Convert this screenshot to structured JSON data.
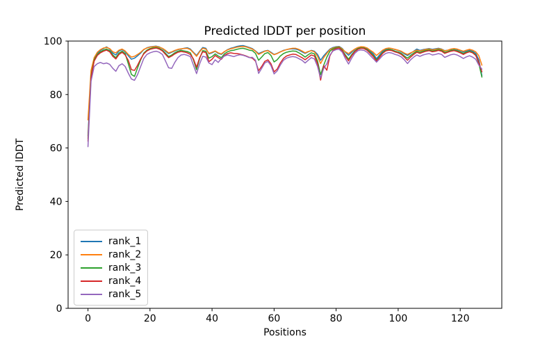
{
  "chart_data": {
    "type": "line",
    "title": "Predicted lDDT per position",
    "xlabel": "Positions",
    "ylabel": "Predicted lDDT",
    "xlim": [
      -6.4,
      133.4
    ],
    "ylim": [
      0,
      100
    ],
    "xticks": [
      0,
      20,
      40,
      60,
      80,
      100,
      120
    ],
    "yticks": [
      0,
      20,
      40,
      60,
      80,
      100
    ],
    "grid": false,
    "legend_position": "lower left",
    "x_start": 0,
    "x_step": 1,
    "n_points": 128,
    "series": [
      {
        "name": "rank_1",
        "color": "#1f77b4",
        "values": [
          64.5,
          88,
          93.5,
          95.5,
          96.5,
          97.2,
          97.8,
          97,
          95.5,
          94.8,
          96.3,
          96.8,
          96,
          94.5,
          93.2,
          93.6,
          94.5,
          95.5,
          96.8,
          97.5,
          97.8,
          98,
          98.1,
          97.8,
          97.2,
          96.2,
          95.3,
          95.8,
          96.3,
          96.8,
          97,
          97.3,
          97.5,
          97,
          95.8,
          94.6,
          96.2,
          97.6,
          97.3,
          95.2,
          95.6,
          96.2,
          95.4,
          95,
          96,
          96.8,
          97.3,
          97.6,
          98,
          98.2,
          98.3,
          98,
          97.6,
          97.2,
          96.3,
          95.3,
          95.8,
          96.3,
          96.5,
          95.8,
          95,
          95.4,
          96,
          96.5,
          96.8,
          97,
          97.1,
          97,
          96.6,
          96,
          95.4,
          96,
          96.5,
          96.2,
          95,
          92.8,
          94.5,
          95.8,
          97,
          97.6,
          97.9,
          98,
          97.2,
          95.8,
          94.7,
          95.8,
          96.9,
          97.5,
          97.8,
          97.7,
          97.2,
          96.3,
          95.2,
          93.4,
          94.8,
          96.2,
          97,
          97.3,
          97.2,
          96.8,
          96.5,
          96,
          95.2,
          94.6,
          95.4,
          96.2,
          97,
          96.5,
          96.8,
          97,
          97.2,
          96.9,
          97.1,
          97.3,
          97,
          96.4,
          96.6,
          96.9,
          97.1,
          96.8,
          96.4,
          95.9,
          96.3,
          96.6,
          96.2,
          95.4,
          93,
          87
        ]
      },
      {
        "name": "rank_2",
        "color": "#ff7f0e",
        "values": [
          70.5,
          89,
          93.8,
          95.8,
          96.8,
          97.4,
          97.6,
          97.2,
          96,
          95.6,
          96.6,
          97,
          96.3,
          95,
          94,
          94.3,
          95,
          95.8,
          96.9,
          97.4,
          97.7,
          97.9,
          98,
          97.7,
          97.3,
          96.5,
          95.6,
          96,
          96.5,
          96.9,
          97.1,
          97.2,
          97.3,
          96.8,
          95.6,
          94.3,
          96,
          97.3,
          97,
          95.4,
          95.8,
          96.3,
          95.6,
          95.2,
          96.1,
          96.7,
          97.1,
          97.4,
          97.7,
          97.9,
          98,
          97.8,
          97.4,
          97,
          96.2,
          95,
          95.6,
          96.2,
          96.4,
          95.6,
          94.9,
          95.3,
          95.9,
          96.4,
          96.8,
          97.1,
          97.3,
          97.3,
          96.9,
          96.3,
          95.6,
          96.1,
          96.4,
          96,
          94.3,
          91.6,
          93.8,
          95.4,
          96.8,
          97.4,
          97.7,
          97.8,
          97,
          96,
          95.3,
          96.2,
          97,
          97.6,
          97.9,
          97.8,
          97.4,
          96.6,
          95.8,
          94.6,
          95.6,
          96.6,
          97.2,
          97.4,
          97.2,
          96.9,
          96.6,
          96.2,
          95.5,
          95,
          95.6,
          96.1,
          96.6,
          96.3,
          96.6,
          96.9,
          97,
          96.7,
          96.9,
          97.1,
          96.9,
          96.3,
          96.6,
          97,
          97.2,
          97,
          96.6,
          96.2,
          96.6,
          96.9,
          96.6,
          96,
          94.5,
          91
        ]
      },
      {
        "name": "rank_3",
        "color": "#2ca02c",
        "values": [
          63.5,
          87,
          93,
          95,
          96,
          96.6,
          97,
          96.4,
          94.8,
          93.8,
          95.5,
          96.2,
          95.3,
          91.5,
          87.5,
          86.8,
          90,
          93,
          95.5,
          96.6,
          97.2,
          97.5,
          97.6,
          97.3,
          96.6,
          95.4,
          94.2,
          94.8,
          95.6,
          96.2,
          96.5,
          96.3,
          96.1,
          95.6,
          93,
          89.3,
          93.5,
          96.4,
          96.2,
          93.6,
          94.2,
          95.2,
          94.4,
          93.8,
          95.2,
          96,
          96.4,
          96.6,
          96.9,
          97.2,
          97.3,
          97,
          96.6,
          96.4,
          95.4,
          92.8,
          94,
          95.3,
          95.7,
          94.6,
          92.2,
          93,
          94.4,
          95.3,
          95.8,
          96.1,
          96.3,
          96.2,
          95.6,
          94.9,
          94,
          94.9,
          95.6,
          95.2,
          92.5,
          87.4,
          91,
          94,
          96.2,
          97.1,
          97.5,
          97.6,
          96.6,
          94.8,
          93.2,
          94.9,
          96.3,
          97.2,
          97.5,
          97.4,
          96.8,
          95.8,
          94.6,
          92.9,
          94.2,
          95.7,
          96.6,
          96.9,
          96.7,
          96.2,
          95.9,
          95.4,
          94.4,
          93.6,
          94.6,
          95.5,
          96.2,
          95.8,
          96.2,
          96.5,
          96.7,
          96.3,
          96.5,
          96.8,
          96.5,
          95.8,
          96.1,
          96.5,
          96.7,
          96.4,
          95.9,
          95.4,
          95.9,
          96.2,
          95.8,
          94.8,
          91.5,
          86.5
        ]
      },
      {
        "name": "rank_4",
        "color": "#d62728",
        "values": [
          62.5,
          86.5,
          92.5,
          94.6,
          95.6,
          96.2,
          96.6,
          96,
          94.3,
          93.3,
          95,
          95.8,
          94.8,
          92.8,
          89.3,
          89,
          91,
          93.3,
          95.2,
          96.3,
          96.9,
          97.2,
          97.4,
          97,
          96.3,
          95,
          93.8,
          94.4,
          95.2,
          95.8,
          96.1,
          95.9,
          95.6,
          95,
          93.3,
          90.2,
          93.8,
          96,
          95.7,
          92.3,
          93.2,
          94.6,
          93.8,
          93.2,
          94.6,
          95.3,
          95.6,
          95.4,
          95.3,
          95.1,
          94.8,
          94.4,
          93.9,
          93.6,
          92.5,
          88.9,
          90.5,
          92.4,
          93,
          91.5,
          88.5,
          89.5,
          91.8,
          93.5,
          94.4,
          94.8,
          95.1,
          95,
          94.4,
          93.8,
          93,
          93.9,
          94.8,
          94.4,
          91.5,
          85.4,
          90.8,
          89.1,
          94.5,
          96.6,
          97.2,
          97.4,
          96.3,
          94.3,
          92.6,
          94.5,
          96,
          96.9,
          97.3,
          97.2,
          96.5,
          95.4,
          94.2,
          92.5,
          93.9,
          95.4,
          96.3,
          96.6,
          96.4,
          95.9,
          95.6,
          95,
          94,
          92.8,
          94,
          95,
          95.8,
          95.4,
          95.8,
          96.2,
          96.4,
          96,
          96.2,
          96.5,
          96.2,
          95.4,
          95.8,
          96.2,
          96.4,
          96.1,
          95.6,
          95,
          95.6,
          96,
          95.6,
          94.6,
          92,
          88.5
        ]
      },
      {
        "name": "rank_5",
        "color": "#9467bd",
        "values": [
          60.5,
          85,
          90.5,
          91.5,
          92,
          91.5,
          91.8,
          91.3,
          89.8,
          88.7,
          90.8,
          91.5,
          90.5,
          88,
          85.8,
          85.3,
          87.5,
          90.5,
          93.5,
          95,
          95.6,
          96,
          96.2,
          95.8,
          95,
          92.5,
          90,
          89.8,
          92,
          93.8,
          94.8,
          95,
          94.7,
          94.2,
          91,
          87.8,
          91.5,
          94.3,
          94,
          91.8,
          91.2,
          93,
          92,
          93.5,
          94.4,
          94.8,
          94.5,
          94.2,
          94.6,
          94.9,
          94.7,
          94.3,
          93.8,
          93.9,
          92.8,
          87.9,
          89.8,
          91.8,
          92.4,
          90.8,
          87.7,
          88.8,
          91,
          92.8,
          93.6,
          94,
          94.2,
          94,
          93.4,
          92.8,
          91.8,
          92.8,
          93.8,
          93.3,
          90.5,
          86.2,
          89.8,
          91.5,
          94.8,
          96.3,
          96.8,
          96.9,
          95.8,
          93.4,
          91.4,
          93.6,
          95.4,
          96.4,
          96.7,
          96.5,
          95.8,
          94.6,
          93.4,
          92.1,
          93.3,
          94.6,
          95.4,
          95.7,
          95.5,
          95,
          94.7,
          94.1,
          93,
          91.6,
          93,
          94,
          94.8,
          94.3,
          94.8,
          95.1,
          95.3,
          94.8,
          95,
          95.3,
          95,
          93.9,
          94.4,
          94.9,
          95.1,
          94.8,
          94.2,
          93.5,
          94.1,
          94.5,
          94,
          93.2,
          91,
          89.5
        ]
      }
    ]
  },
  "colors": {
    "spine": "#000000",
    "text": "#000000",
    "legend_border": "#cccccc",
    "background": "#ffffff"
  }
}
